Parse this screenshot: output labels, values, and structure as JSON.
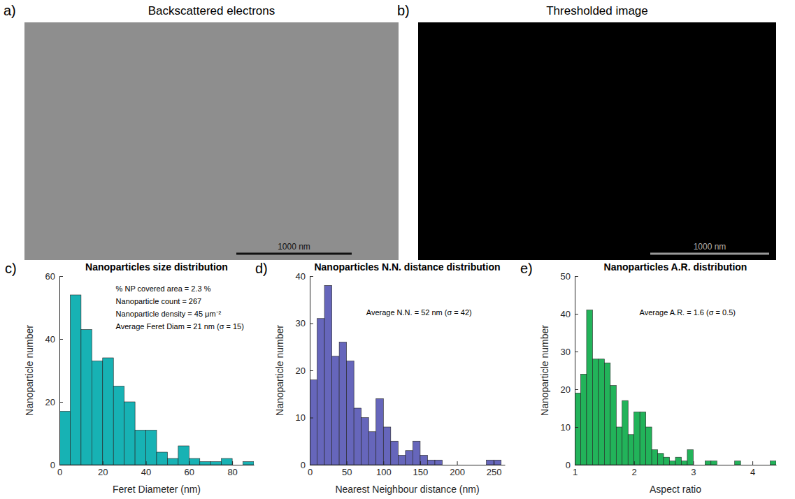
{
  "images": [
    {
      "panel_label": "a)",
      "title": "Backscattered electrons",
      "scale_bar": "1000 nm"
    },
    {
      "panel_label": "b)",
      "title": "Thresholded image",
      "scale_bar": "1000 nm"
    }
  ],
  "chart_data": [
    {
      "type": "histogram",
      "panel_label": "c)",
      "title": "Nanoparticles size distribution",
      "x_label": "Feret Diameter (nm)",
      "y_label": "Nanoparticle number",
      "color": "#17b2b4",
      "annotations": [
        "% NP covered area = 2.3 %",
        "Nanoparticle count = 267",
        "Nanoparticle density = 45 μm⁻²",
        "Average Feret Diam = 21 nm (σ = 15)"
      ],
      "bins": [
        0,
        5,
        10,
        15,
        20,
        25,
        30,
        35,
        40,
        45,
        50,
        55,
        60,
        65,
        70,
        75,
        80,
        85,
        90
      ],
      "values": [
        17,
        54,
        43,
        33,
        34,
        25,
        20,
        11,
        11,
        4,
        2,
        6,
        2,
        1,
        1,
        2,
        0,
        1
      ],
      "xlim": [
        0,
        90
      ],
      "xticks": [
        0,
        20,
        40,
        60,
        80
      ],
      "ylim": [
        0,
        60
      ],
      "yticks": [
        0,
        20,
        40,
        60
      ]
    },
    {
      "type": "histogram",
      "panel_label": "d)",
      "title": "Nanoparticles N.N. distance distribution",
      "x_label": "Nearest Neighbour distance (nm)",
      "y_label": "Nanoparticle number",
      "color": "#6666bb",
      "annotations": [
        "Average N.N. = 52 nm (σ = 42)"
      ],
      "bins": [
        0,
        10,
        20,
        30,
        40,
        50,
        60,
        70,
        80,
        90,
        100,
        110,
        120,
        130,
        140,
        150,
        160,
        170,
        180,
        190,
        200,
        210,
        220,
        230,
        240,
        250,
        260
      ],
      "values": [
        18,
        31,
        38,
        23,
        26,
        22,
        12,
        10,
        7,
        14,
        8,
        5,
        2,
        3,
        5,
        2,
        1,
        1,
        0,
        0,
        0,
        0,
        0,
        0,
        1,
        1
      ],
      "xlim": [
        0,
        265
      ],
      "xticks": [
        0,
        50,
        100,
        150,
        200,
        250
      ],
      "ylim": [
        0,
        40
      ],
      "yticks": [
        0,
        10,
        20,
        30,
        40
      ]
    },
    {
      "type": "histogram",
      "panel_label": "e)",
      "title": "Nanoparticles A.R. distribution",
      "x_label": "Aspect ratio",
      "y_label": "Nanoparticle number",
      "color": "#22b35a",
      "annotations": [
        "Average A.R. = 1.6 (σ = 0.5)"
      ],
      "bins": [
        1,
        1.1,
        1.2,
        1.3,
        1.4,
        1.5,
        1.6,
        1.7,
        1.8,
        1.9,
        2,
        2.1,
        2.2,
        2.3,
        2.4,
        2.5,
        2.6,
        2.7,
        2.8,
        2.9,
        3,
        3.1,
        3.2,
        3.3,
        3.4,
        3.5,
        3.6,
        3.7,
        3.8,
        3.9,
        4,
        4.1,
        4.2,
        4.3,
        4.4
      ],
      "values": [
        19,
        24,
        41,
        28,
        28,
        27,
        21,
        10,
        17,
        8,
        14,
        14,
        10,
        4,
        3,
        2,
        1,
        2,
        1,
        4,
        0,
        0,
        1,
        1,
        0,
        0,
        0,
        1,
        0,
        0,
        0,
        0,
        0,
        1
      ],
      "xlim": [
        1,
        4.4
      ],
      "xticks": [
        1,
        2,
        3,
        4
      ],
      "ylim": [
        0,
        50
      ],
      "yticks": [
        0,
        10,
        20,
        30,
        40,
        50
      ]
    }
  ]
}
